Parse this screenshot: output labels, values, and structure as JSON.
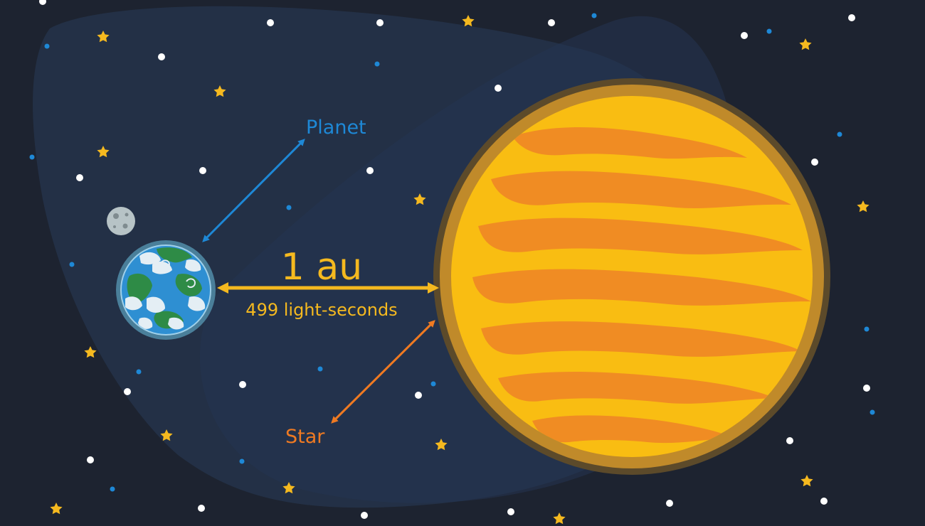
{
  "diagram": {
    "labels": {
      "planet": "Planet",
      "star": "Star",
      "distance": "1 au",
      "light_time": "499 light-seconds"
    },
    "colors": {
      "background": "#1d2330",
      "haze": "#26354d",
      "planet_arrow": "#1e88d6",
      "star_arrow": "#ef7a22",
      "distance_arrow": "#f5b91f",
      "star_glow": "#c08a2a",
      "star_body": "#f9bd12",
      "star_flame": "#f08c23",
      "planet_ocean": "#2e8fd2",
      "planet_land": "#2e8b46",
      "planet_cloud": "#e4eef4",
      "moon": "#b7c3c6",
      "star_dot_white": "#ffffff",
      "star_dot_yellow": "#f5b91f",
      "star_dot_blue": "#1e88d6"
    },
    "icons": [
      "planet-icon",
      "moon-icon",
      "star-icon",
      "twinkle-icon"
    ]
  }
}
